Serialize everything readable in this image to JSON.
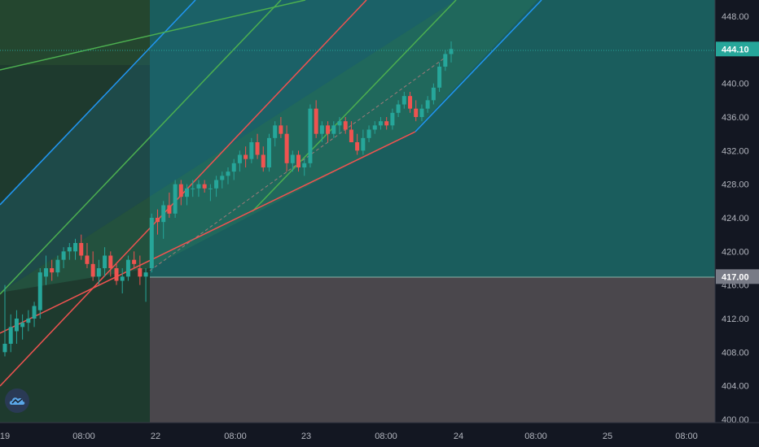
{
  "chart_data": {
    "type": "candlestick",
    "title": "",
    "y_axis": {
      "range": [
        400,
        450
      ],
      "ticks": [
        "448.00",
        "444.00",
        "440.00",
        "436.00",
        "432.00",
        "428.00",
        "424.00",
        "420.00",
        "416.00",
        "412.00",
        "408.00",
        "404.00",
        "400.00"
      ]
    },
    "x_axis": {
      "ticks": [
        "19",
        "08:00",
        "22",
        "08:00",
        "23",
        "08:00",
        "24",
        "08:00",
        "25",
        "08:00"
      ]
    },
    "price_labels": [
      {
        "text": "444.10",
        "value": 444.1,
        "color": "#26a69a"
      },
      {
        "text": "417.00",
        "value": 417.0,
        "color": "#787b86"
      }
    ],
    "candles_ohlc": [
      [
        408,
        416,
        407.5,
        409
      ],
      [
        409,
        412.5,
        408,
        411
      ],
      [
        410.5,
        413,
        409,
        412
      ],
      [
        411,
        412.5,
        409.5,
        411.5
      ],
      [
        411.5,
        413,
        410.5,
        412
      ],
      [
        412,
        414,
        411,
        413.5
      ],
      [
        413,
        418,
        412,
        417.5
      ],
      [
        417,
        419.5,
        416,
        418
      ],
      [
        418,
        419,
        416.5,
        417.5
      ],
      [
        417.5,
        419.5,
        417,
        419
      ],
      [
        419,
        420.5,
        418,
        420
      ],
      [
        420,
        421,
        419,
        420.5
      ],
      [
        420,
        421.5,
        419,
        421
      ],
      [
        421,
        422,
        419,
        419.5
      ],
      [
        419.5,
        421,
        418,
        418.5
      ],
      [
        418.5,
        420,
        416.5,
        417
      ],
      [
        417,
        419,
        416,
        418
      ],
      [
        418,
        420.5,
        417,
        419.5
      ],
      [
        419.5,
        420,
        417,
        418
      ],
      [
        418,
        418.5,
        416,
        416.5
      ],
      [
        416.5,
        418,
        415,
        417
      ],
      [
        417,
        419.5,
        416.5,
        419
      ],
      [
        419,
        420,
        418,
        418.5
      ],
      [
        418,
        419.5,
        416,
        417
      ],
      [
        417,
        418,
        414,
        417.5
      ],
      [
        418,
        424.5,
        417.5,
        424
      ],
      [
        424,
        425,
        422,
        423.5
      ],
      [
        423.5,
        426,
        421.5,
        425.5
      ],
      [
        425.5,
        427,
        424,
        424.5
      ],
      [
        424.5,
        428.5,
        424,
        428
      ],
      [
        428,
        428.5,
        425.5,
        426.5
      ],
      [
        426.5,
        428,
        425.5,
        427.5
      ],
      [
        427.5,
        428.5,
        426.5,
        427.5
      ],
      [
        427.5,
        428.5,
        426.5,
        428
      ],
      [
        428,
        428.5,
        427,
        427.5
      ],
      [
        427.5,
        428,
        426,
        427.5
      ],
      [
        427.5,
        429,
        426.5,
        428.5
      ],
      [
        428.5,
        429.5,
        427.5,
        429
      ],
      [
        429,
        430,
        428,
        429.5
      ],
      [
        429.5,
        431,
        428.5,
        430.5
      ],
      [
        430.5,
        432,
        429.5,
        431.5
      ],
      [
        431.5,
        432.5,
        430,
        431
      ],
      [
        431,
        433.5,
        430.5,
        433
      ],
      [
        433,
        434,
        431,
        431.5
      ],
      [
        431.5,
        432.5,
        429.5,
        430
      ],
      [
        430,
        434,
        429.5,
        433.5
      ],
      [
        433.5,
        435.5,
        432.5,
        435
      ],
      [
        435,
        436,
        433.5,
        434
      ],
      [
        434,
        435,
        429.5,
        430.5
      ],
      [
        430.5,
        432,
        429.5,
        431.5
      ],
      [
        431.5,
        432,
        429.5,
        430
      ],
      [
        430,
        431,
        429,
        430.5
      ],
      [
        430.5,
        437.5,
        430,
        437
      ],
      [
        437,
        438,
        433.5,
        434
      ],
      [
        434,
        435.5,
        433,
        435
      ],
      [
        435,
        435.5,
        433,
        434
      ],
      [
        434,
        435.5,
        433.5,
        435
      ],
      [
        435,
        436,
        434,
        435.5
      ],
      [
        435.5,
        436,
        434,
        434.5
      ],
      [
        434.5,
        435.5,
        433,
        433
      ],
      [
        433,
        434,
        431.5,
        432
      ],
      [
        432,
        434.5,
        431.5,
        433.5
      ],
      [
        433.5,
        435,
        433,
        434.5
      ],
      [
        434.5,
        435.5,
        434,
        435
      ],
      [
        435,
        436,
        434.5,
        435.5
      ],
      [
        435.5,
        436,
        434.5,
        435
      ],
      [
        435,
        437,
        434.5,
        436.5
      ],
      [
        436.5,
        438,
        436,
        437.5
      ],
      [
        437.5,
        439,
        437,
        438.5
      ],
      [
        438.5,
        439,
        436.5,
        437
      ],
      [
        437,
        438,
        435.5,
        436
      ],
      [
        436,
        437.5,
        435.5,
        437
      ],
      [
        437,
        438.5,
        436.5,
        438
      ],
      [
        438,
        440,
        437.5,
        439.5
      ],
      [
        439.5,
        442.5,
        439,
        442
      ],
      [
        442,
        444,
        441.5,
        443.5
      ],
      [
        443.5,
        445,
        442.5,
        444.1
      ]
    ]
  },
  "colors": {
    "background": "#131722",
    "up": "#26a69a",
    "down": "#ef5350",
    "grid": "#2a2e39"
  },
  "logo_icon": "tradingview-cloud-icon"
}
